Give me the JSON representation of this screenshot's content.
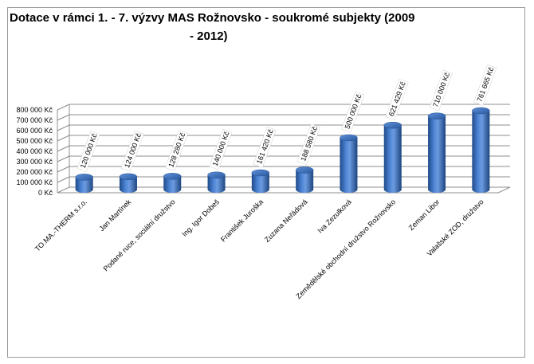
{
  "chart_data": {
    "type": "bar",
    "title_line1": "Dotace v rámci 1. - 7. výzvy MAS Rožnovsko  - soukromé  subjekty  (2009",
    "title_line2": "- 2012)",
    "categories": [
      "TO.MA.-THERM s.r.o.",
      "Jan Martínek",
      "Podané ruce, sociální družstvo",
      "Ing. Igor Dobeš",
      "František Juroška",
      "Zuzana Neřádová",
      "Iva Zezulková",
      "Zemědělské obchodní družstvo Rožnovsko",
      "Zeman Libor",
      "Valašské ZOD, družstvo"
    ],
    "values": [
      120000,
      124000,
      128280,
      140000,
      161420,
      188580,
      500000,
      621429,
      710000,
      761665
    ],
    "data_labels": [
      "120 000 Kč",
      "124 000 Kč",
      "128 280 Kč",
      "140 000 Kč",
      "161 420 Kč",
      "188 580 Kč",
      "500 000 Kč",
      "621 429 Kč",
      "710 000 Kč",
      "761 665 Kč"
    ],
    "y_ticks": [
      "0 Kč",
      "100 000 Kč",
      "200 000 Kč",
      "300 000 Kč",
      "400 000 Kč",
      "500 000 Kč",
      "600 000 Kč",
      "700 000 Kč",
      "800 000 Kč"
    ],
    "ylim": [
      0,
      800000
    ],
    "grid": true,
    "legend": "none",
    "bar_color": "#2f62ad"
  }
}
